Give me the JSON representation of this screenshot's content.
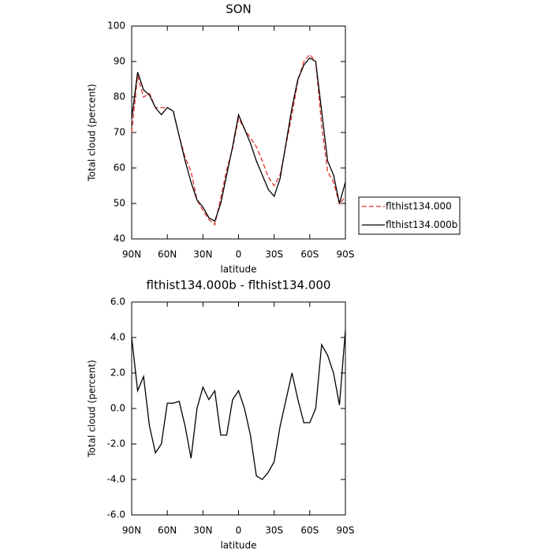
{
  "chart_data": [
    {
      "type": "line",
      "title": "SON",
      "x_label": "latitude",
      "y_label": "Total cloud (percent)",
      "x": [
        90,
        85,
        80,
        75,
        70,
        65,
        60,
        55,
        50,
        45,
        40,
        35,
        30,
        25,
        20,
        15,
        10,
        5,
        0,
        -5,
        -10,
        -15,
        -20,
        -25,
        -30,
        -35,
        -40,
        -45,
        -50,
        -55,
        -60,
        -65,
        -70,
        -75,
        -80,
        -85,
        -90
      ],
      "xlim": [
        90,
        -90
      ],
      "xticks": [
        {
          "value": 90,
          "label": "90N"
        },
        {
          "value": 60,
          "label": "60N"
        },
        {
          "value": 30,
          "label": "30N"
        },
        0,
        {
          "value": -30,
          "label": "30S"
        },
        {
          "value": -60,
          "label": "60S"
        },
        {
          "value": -90,
          "label": "90S"
        }
      ],
      "ylim": [
        40,
        100
      ],
      "yticks": [
        40,
        50,
        60,
        70,
        80,
        90,
        100
      ],
      "legend": "right",
      "series": [
        {
          "name": "flthist134.000",
          "color": "#e8302a",
          "dashed": true,
          "values": [
            70,
            86,
            80,
            81,
            77,
            77,
            77,
            76,
            69,
            63,
            59,
            51,
            48,
            45.5,
            44,
            51.5,
            59.5,
            65.5,
            74,
            71,
            68.5,
            66,
            62,
            57.5,
            55,
            58,
            66.5,
            75,
            84.5,
            90,
            92,
            90,
            72,
            59,
            56,
            49.8,
            52
          ]
        },
        {
          "name": "flthist134.000b",
          "color": "#000000",
          "dashed": false,
          "values": [
            74,
            87,
            82,
            80.5,
            77,
            75,
            77,
            76,
            69,
            62,
            56,
            51,
            49,
            46,
            45,
            50,
            58,
            66,
            75,
            71,
            67,
            62,
            58,
            54,
            52,
            57,
            67,
            77,
            85,
            89,
            91,
            90,
            76,
            62,
            58,
            50,
            56
          ]
        }
      ]
    },
    {
      "type": "line",
      "title": "flthist134.000b - flthist134.000",
      "x_label": "latitude",
      "y_label": "Total cloud (percent)",
      "x": [
        90,
        85,
        80,
        75,
        70,
        65,
        60,
        55,
        50,
        45,
        40,
        35,
        30,
        25,
        20,
        15,
        10,
        5,
        0,
        -5,
        -10,
        -15,
        -20,
        -25,
        -30,
        -35,
        -40,
        -45,
        -50,
        -55,
        -60,
        -65,
        -70,
        -75,
        -80,
        -85,
        -90
      ],
      "xlim": [
        90,
        -90
      ],
      "xticks": [
        {
          "value": 90,
          "label": "90N"
        },
        {
          "value": 60,
          "label": "60N"
        },
        {
          "value": 30,
          "label": "30N"
        },
        0,
        {
          "value": -30,
          "label": "30S"
        },
        {
          "value": -60,
          "label": "60S"
        },
        {
          "value": -90,
          "label": "90S"
        }
      ],
      "ylim": [
        -6,
        6
      ],
      "yticks": [
        {
          "value": -6,
          "label": "-6.0"
        },
        {
          "value": -4,
          "label": "-4.0"
        },
        {
          "value": -2,
          "label": "-2.0"
        },
        {
          "value": 0,
          "label": "0.0"
        },
        {
          "value": 2,
          "label": "2.0"
        },
        {
          "value": 4,
          "label": "4.0"
        },
        {
          "value": 6,
          "label": "6.0"
        }
      ],
      "color": "#000000",
      "values": [
        4.0,
        1.0,
        1.8,
        -1.0,
        -2.5,
        -2.0,
        0.3,
        0.3,
        0.4,
        -1.0,
        -2.8,
        0.0,
        1.2,
        0.5,
        1.0,
        -1.5,
        -1.5,
        0.5,
        1.0,
        0.0,
        -1.5,
        -3.8,
        -4.0,
        -3.6,
        -3.0,
        -1.0,
        0.5,
        2.0,
        0.5,
        -0.8,
        -0.8,
        0.0,
        3.6,
        3.0,
        2.0,
        0.2,
        4.4
      ]
    }
  ]
}
